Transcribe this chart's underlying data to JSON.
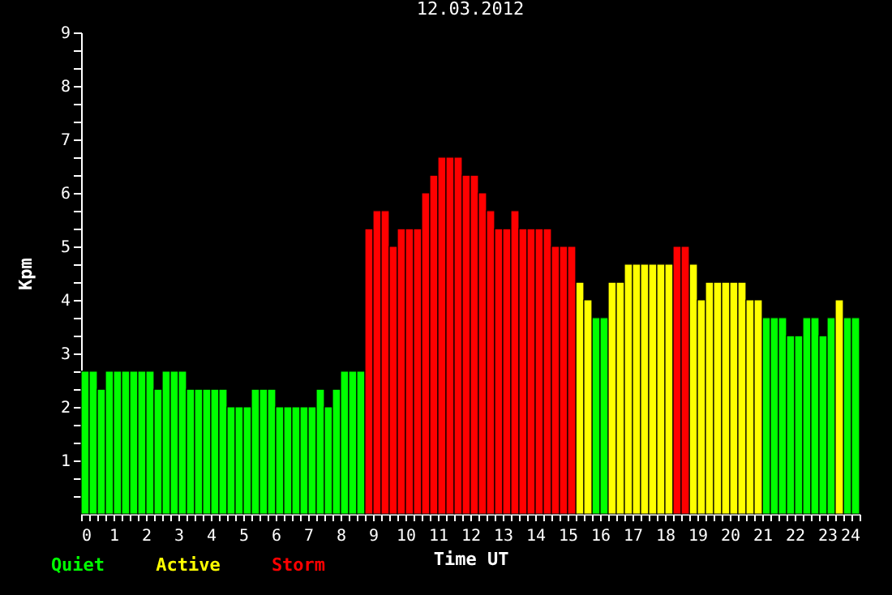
{
  "chart_data": {
    "type": "bar",
    "title": "12.03.2012",
    "xlabel": "Time UT",
    "ylabel": "Kpm",
    "xlim": [
      0,
      24
    ],
    "ylim": [
      0,
      9
    ],
    "xticks": [
      0,
      {
        "value": 0.25,
        "label": null
      },
      {
        "value": 0.5,
        "label": null
      },
      {
        "value": 0.75,
        "label": null
      },
      1,
      {
        "value": 1.25,
        "label": null
      },
      {
        "value": 1.5,
        "label": null
      },
      {
        "value": 1.75,
        "label": null
      },
      2,
      {
        "value": 2.25,
        "label": null
      },
      {
        "value": 2.5,
        "label": null
      },
      {
        "value": 2.75,
        "label": null
      },
      3,
      {
        "value": 3.25,
        "label": null
      },
      {
        "value": 3.5,
        "label": null
      },
      {
        "value": 3.75,
        "label": null
      },
      4,
      {
        "value": 4.25,
        "label": null
      },
      {
        "value": 4.5,
        "label": null
      },
      {
        "value": 4.75,
        "label": null
      },
      5,
      {
        "value": 5.25,
        "label": null
      },
      {
        "value": 5.5,
        "label": null
      },
      {
        "value": 5.75,
        "label": null
      },
      6,
      {
        "value": 6.25,
        "label": null
      },
      {
        "value": 6.5,
        "label": null
      },
      {
        "value": 6.75,
        "label": null
      },
      7,
      {
        "value": 7.25,
        "label": null
      },
      {
        "value": 7.5,
        "label": null
      },
      {
        "value": 7.75,
        "label": null
      },
      8,
      {
        "value": 8.25,
        "label": null
      },
      {
        "value": 8.5,
        "label": null
      },
      {
        "value": 8.75,
        "label": null
      },
      9,
      {
        "value": 9.25,
        "label": null
      },
      {
        "value": 9.5,
        "label": null
      },
      {
        "value": 9.75,
        "label": null
      },
      10,
      {
        "value": 10.25,
        "label": null
      },
      {
        "value": 10.5,
        "label": null
      },
      {
        "value": 10.75,
        "label": null
      },
      11,
      {
        "value": 11.25,
        "label": null
      },
      {
        "value": 11.5,
        "label": null
      },
      {
        "value": 11.75,
        "label": null
      },
      12,
      {
        "value": 12.25,
        "label": null
      },
      {
        "value": 12.5,
        "label": null
      },
      {
        "value": 12.75,
        "label": null
      },
      13,
      {
        "value": 13.25,
        "label": null
      },
      {
        "value": 13.5,
        "label": null
      },
      {
        "value": 13.75,
        "label": null
      },
      14,
      {
        "value": 14.25,
        "label": null
      },
      {
        "value": 14.5,
        "label": null
      },
      {
        "value": 14.75,
        "label": null
      },
      15,
      {
        "value": 15.25,
        "label": null
      },
      {
        "value": 15.5,
        "label": null
      },
      {
        "value": 15.75,
        "label": null
      },
      16,
      {
        "value": 16.25,
        "label": null
      },
      {
        "value": 16.5,
        "label": null
      },
      {
        "value": 16.75,
        "label": null
      },
      17,
      {
        "value": 17.25,
        "label": null
      },
      {
        "value": 17.5,
        "label": null
      },
      {
        "value": 17.75,
        "label": null
      },
      18,
      {
        "value": 18.25,
        "label": null
      },
      {
        "value": 18.5,
        "label": null
      },
      {
        "value": 18.75,
        "label": null
      },
      19,
      {
        "value": 19.25,
        "label": null
      },
      {
        "value": 19.5,
        "label": null
      },
      {
        "value": 19.75,
        "label": null
      },
      20,
      {
        "value": 20.25,
        "label": null
      },
      {
        "value": 20.5,
        "label": null
      },
      {
        "value": 20.75,
        "label": null
      },
      21,
      {
        "value": 21.25,
        "label": null
      },
      {
        "value": 21.5,
        "label": null
      },
      {
        "value": 21.75,
        "label": null
      },
      22,
      {
        "value": 22.25,
        "label": null
      },
      {
        "value": 22.5,
        "label": null
      },
      {
        "value": 22.75,
        "label": null
      },
      23,
      {
        "value": 23.25,
        "label": null
      },
      {
        "value": 23.5,
        "label": null
      },
      {
        "value": 23.75,
        "label": null
      },
      24
    ],
    "yticks": [
      {
        "value": 0.333,
        "label": null
      },
      {
        "value": 0.667,
        "label": null
      },
      1,
      {
        "value": 1.333,
        "label": null
      },
      {
        "value": 1.667,
        "label": null
      },
      2,
      {
        "value": 2.333,
        "label": null
      },
      {
        "value": 2.667,
        "label": null
      },
      3,
      {
        "value": 3.333,
        "label": null
      },
      {
        "value": 3.667,
        "label": null
      },
      4,
      {
        "value": 4.333,
        "label": null
      },
      {
        "value": 4.667,
        "label": null
      },
      5,
      {
        "value": 5.333,
        "label": null
      },
      {
        "value": 5.667,
        "label": null
      },
      6,
      {
        "value": 6.333,
        "label": null
      },
      {
        "value": 6.667,
        "label": null
      },
      7,
      {
        "value": 7.333,
        "label": null
      },
      {
        "value": 7.667,
        "label": null
      },
      8,
      {
        "value": 8.333,
        "label": null
      },
      {
        "value": 8.667,
        "label": null
      },
      9
    ],
    "grid": false,
    "series": [
      {
        "name": "Quiet",
        "color": "#00ff00",
        "x": [
          0.125,
          0.375,
          0.625,
          0.875,
          1.125,
          1.375,
          1.625,
          1.875,
          2.125,
          2.375,
          2.625,
          2.875,
          3.125,
          3.375,
          3.625,
          3.875,
          4.125,
          4.375,
          4.625,
          4.875,
          5.125,
          5.375,
          5.625,
          5.875,
          6.125,
          6.375,
          6.625,
          6.875,
          7.125,
          7.375,
          7.625,
          7.875,
          8.125,
          8.375,
          8.625,
          15.875,
          16.125,
          21.125,
          21.375,
          21.625,
          21.875,
          22.125,
          22.375,
          22.625,
          22.875,
          23.125,
          23.625,
          23.875
        ],
        "values": [
          2.67,
          2.67,
          2.33,
          2.67,
          2.67,
          2.67,
          2.67,
          2.67,
          2.67,
          2.33,
          2.67,
          2.67,
          2.67,
          2.33,
          2.33,
          2.33,
          2.33,
          2.33,
          2.0,
          2.0,
          2.0,
          2.33,
          2.33,
          2.33,
          2.0,
          2.0,
          2.0,
          2.0,
          2.0,
          2.33,
          2.0,
          2.33,
          2.67,
          2.67,
          2.67,
          3.67,
          3.67,
          3.67,
          3.67,
          3.67,
          3.33,
          3.33,
          3.67,
          3.67,
          3.33,
          3.67,
          3.67,
          3.67
        ]
      },
      {
        "name": "Active",
        "color": "#ffff00",
        "x": [
          15.375,
          15.625,
          16.375,
          16.625,
          16.875,
          17.125,
          17.375,
          17.625,
          17.875,
          18.125,
          18.875,
          19.125,
          19.375,
          19.625,
          19.875,
          20.125,
          20.375,
          20.625,
          20.875,
          23.375
        ],
        "values": [
          4.33,
          4.0,
          4.33,
          4.33,
          4.67,
          4.67,
          4.67,
          4.67,
          4.67,
          4.67,
          4.67,
          4.0,
          4.33,
          4.33,
          4.33,
          4.33,
          4.33,
          4.0,
          4.0,
          4.0
        ]
      },
      {
        "name": "Storm",
        "color": "#ff0000",
        "x": [
          8.875,
          9.125,
          9.375,
          9.625,
          9.875,
          10.125,
          10.375,
          10.625,
          10.875,
          11.125,
          11.375,
          11.625,
          11.875,
          12.125,
          12.375,
          12.625,
          12.875,
          13.125,
          13.375,
          13.625,
          13.875,
          14.125,
          14.375,
          14.625,
          14.875,
          15.125,
          18.375,
          18.625
        ],
        "values": [
          5.33,
          5.67,
          5.67,
          5.0,
          5.33,
          5.33,
          5.33,
          6.0,
          6.33,
          6.67,
          6.67,
          6.67,
          6.33,
          6.33,
          6.0,
          5.67,
          5.33,
          5.33,
          5.67,
          5.33,
          5.33,
          5.33,
          5.33,
          5.0,
          5.0,
          5.0,
          5.0,
          5.0
        ]
      }
    ]
  }
}
